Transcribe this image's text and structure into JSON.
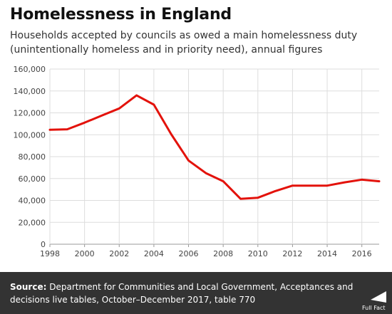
{
  "header": {
    "title": "Homelessness in England",
    "subtitle": "Households accepted by councils as owed a main homelessness duty (unintentionally homeless and in priority need), annual figures"
  },
  "chart_data": {
    "type": "line",
    "x": [
      1998,
      1999,
      2000,
      2001,
      2002,
      2003,
      2004,
      2005,
      2006,
      2007,
      2008,
      2009,
      2010,
      2011,
      2012,
      2013,
      2014,
      2015,
      2016,
      2017
    ],
    "series": [
      {
        "values": [
          104500,
          105000,
          111000,
          117500,
          124000,
          136000,
          127500,
          100500,
          76500,
          65000,
          57500,
          41500,
          42500,
          48500,
          53500,
          53500,
          53500,
          56500,
          59000,
          57500
        ],
        "color": "#e3120b"
      }
    ],
    "xlim": [
      1998,
      2017
    ],
    "ylim": [
      0,
      160000
    ],
    "x_ticks": [
      "1998",
      "2000",
      "2002",
      "2004",
      "2006",
      "2008",
      "2010",
      "2012",
      "2014",
      "2016"
    ],
    "y_ticks": [
      "0",
      "20,000",
      "40,000",
      "60,000",
      "80,000",
      "100,000",
      "120,000",
      "140,000",
      "160,000"
    ],
    "grid": true,
    "title": "Homelessness in England",
    "xlabel": "",
    "ylabel": ""
  },
  "footer": {
    "source_label": "Source:",
    "source_text": "Department for Communities and Local Government, Acceptances and decisions live tables, October–December 2017, table 770",
    "logo_text": "Full Fact"
  },
  "colors": {
    "line": "#e3120b",
    "grid": "#dddddd",
    "footer_bg": "#333333"
  }
}
